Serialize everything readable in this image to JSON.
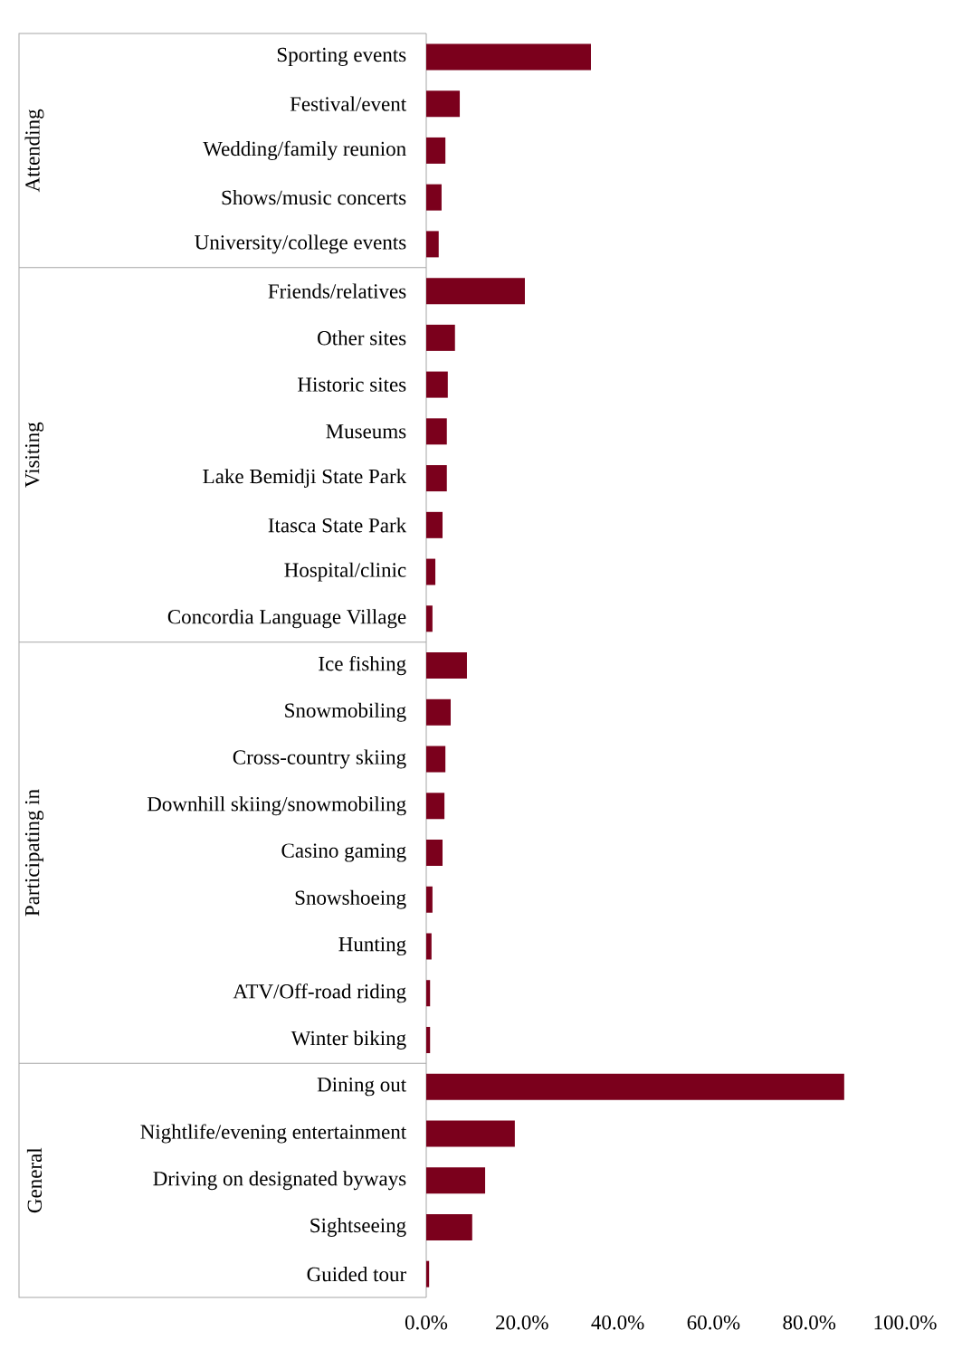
{
  "chart_data": {
    "type": "bar",
    "orientation": "horizontal",
    "color": "#7b001c",
    "categories": [
      "Sporting events",
      "Festival/event",
      "Wedding/family reunion",
      "Shows/music concerts",
      "University/college events",
      "Friends/relatives",
      "Other sites",
      "Historic sites",
      "Museums",
      "Lake Bemidji State Park",
      "Itasca State Park",
      "Hospital/clinic",
      "Concordia Language Village",
      "Ice fishing",
      "Snowmobiling",
      "Cross-country skiing",
      "Downhill skiing/snowmobiling",
      "Casino gaming",
      "Snowshoeing",
      "Hunting",
      "ATV/Off-road riding",
      "Winter biking",
      "Dining out",
      "Nightlife/evening entertainment",
      "Driving on designated byways",
      "Sightseeing",
      "Guided tour"
    ],
    "values": [
      34.4,
      7.0,
      4.0,
      3.2,
      2.6,
      20.6,
      6.0,
      4.5,
      4.3,
      4.3,
      3.4,
      1.9,
      1.3,
      8.5,
      5.1,
      4.0,
      3.8,
      3.4,
      1.3,
      1.1,
      0.8,
      0.8,
      87.3,
      18.5,
      12.3,
      9.6,
      0.6
    ],
    "xlim": [
      0,
      100
    ],
    "xticks": [
      {
        "value": 0,
        "label": "0.0%"
      },
      {
        "value": 20,
        "label": "20.0%"
      },
      {
        "value": 40,
        "label": "40.0%"
      },
      {
        "value": 60,
        "label": "60.0%"
      },
      {
        "value": 80,
        "label": "80.0%"
      },
      {
        "value": 100,
        "label": "100.0%"
      }
    ],
    "annotations": [
      "Attending",
      "Visiting",
      "Participating in",
      "General"
    ],
    "grid": false
  }
}
